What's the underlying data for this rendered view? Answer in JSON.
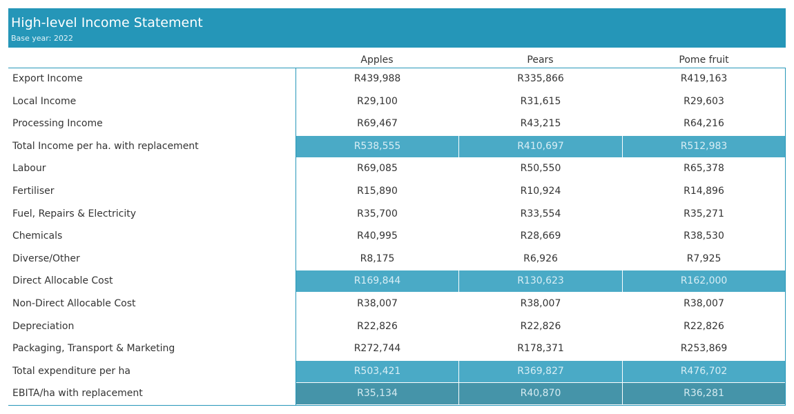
{
  "header": {
    "title": "High-level Income Statement",
    "subtitle": "Base year: 2022"
  },
  "columns": [
    "Apples",
    "Pears",
    "Pome fruit"
  ],
  "rows": [
    {
      "label": "Export Income",
      "values": [
        "R439,988",
        "R335,866",
        "R419,163"
      ],
      "style": "normal"
    },
    {
      "label": "Local Income",
      "values": [
        "R29,100",
        "R31,615",
        "R29,603"
      ],
      "style": "normal"
    },
    {
      "label": "Processing Income",
      "values": [
        "R69,467",
        "R43,215",
        "R64,216"
      ],
      "style": "normal"
    },
    {
      "label": "Total Income per ha. with replacement",
      "values": [
        "R538,555",
        "R410,697",
        "R512,983"
      ],
      "style": "highlight"
    },
    {
      "label": "Labour",
      "values": [
        "R69,085",
        "R50,550",
        "R65,378"
      ],
      "style": "normal"
    },
    {
      "label": "Fertiliser",
      "values": [
        "R15,890",
        "R10,924",
        "R14,896"
      ],
      "style": "normal"
    },
    {
      "label": "Fuel, Repairs & Electricity",
      "values": [
        "R35,700",
        "R33,554",
        "R35,271"
      ],
      "style": "normal"
    },
    {
      "label": "Chemicals",
      "values": [
        "R40,995",
        "R28,669",
        "R38,530"
      ],
      "style": "normal"
    },
    {
      "label": "Diverse/Other",
      "values": [
        "R8,175",
        "R6,926",
        "R7,925"
      ],
      "style": "normal"
    },
    {
      "label": "Direct Allocable Cost",
      "values": [
        "R169,844",
        "R130,623",
        "R162,000"
      ],
      "style": "highlight"
    },
    {
      "label": "Non-Direct Allocable Cost",
      "values": [
        "R38,007",
        "R38,007",
        "R38,007"
      ],
      "style": "normal"
    },
    {
      "label": "Depreciation",
      "values": [
        "R22,826",
        "R22,826",
        "R22,826"
      ],
      "style": "normal"
    },
    {
      "label": "Packaging, Transport & Marketing",
      "values": [
        "R272,744",
        "R178,371",
        "R253,869"
      ],
      "style": "normal"
    },
    {
      "label": "Total expenditure per ha",
      "values": [
        "R503,421",
        "R369,827",
        "R476,702"
      ],
      "style": "highlight"
    },
    {
      "label": "EBITA/ha with replacement",
      "values": [
        "R35,134",
        "R40,870",
        "R36,281"
      ],
      "style": "dark"
    }
  ],
  "colors": {
    "header_bg": "#2596b8",
    "highlight_row": "#4aaac6",
    "total_row": "#4594a9"
  }
}
